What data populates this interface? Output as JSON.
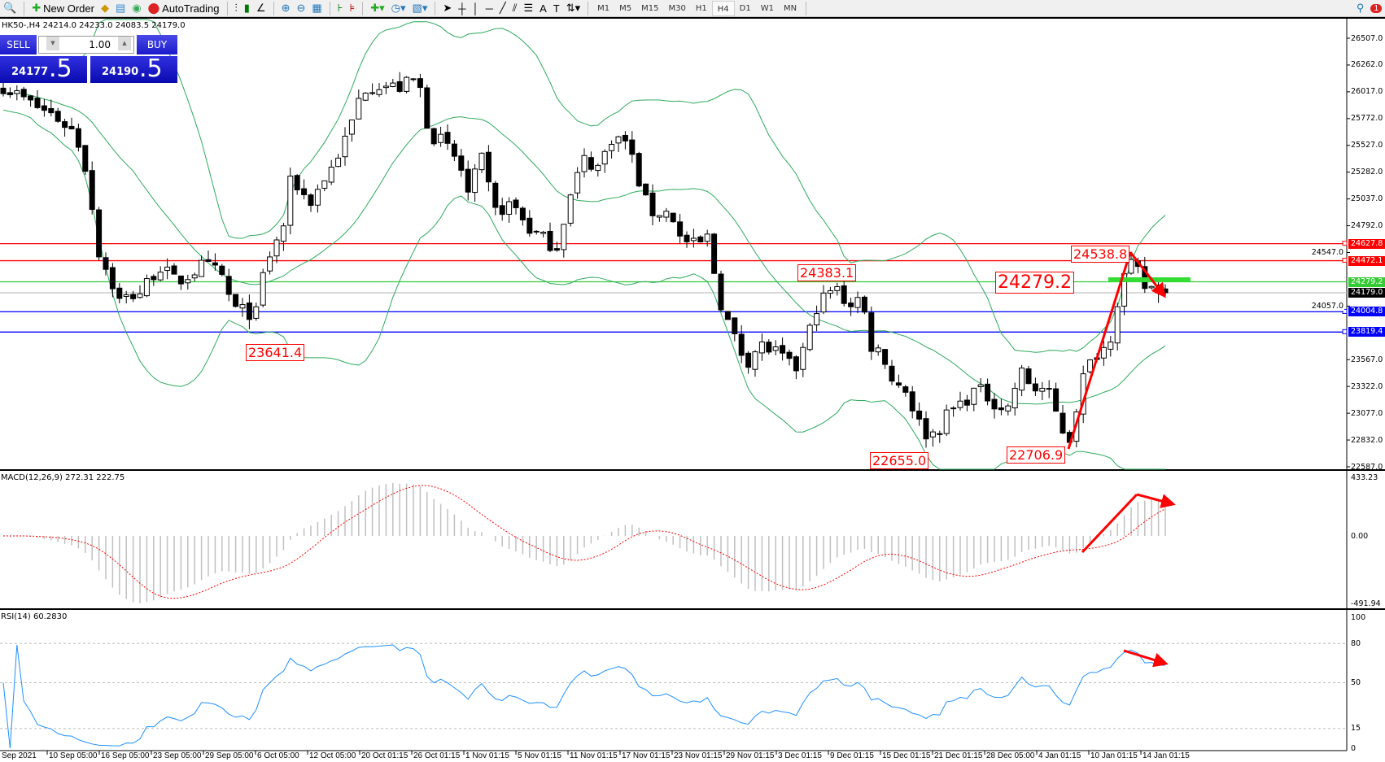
{
  "toolbar": {
    "new_order": "New Order",
    "auto_trading": "AutoTrading",
    "timeframes": [
      "M1",
      "M5",
      "M15",
      "M30",
      "H1",
      "H4",
      "D1",
      "W1",
      "MN"
    ],
    "active_timeframe": "H4",
    "notifications_count": "1"
  },
  "chart": {
    "header": "HK50-,H4  24214.0 24233.0 24083.5 24179.0",
    "symbol": "HK50-",
    "timeframe": "H4",
    "open": 24214.0,
    "high": 24233.0,
    "low": 24083.5,
    "close": 24179.0,
    "price_axis": [
      "26507.0",
      "26262.0",
      "26017.0",
      "25772.0",
      "25527.0",
      "25282.0",
      "25037.0",
      "24792.0",
      "24547.0",
      "24057.0",
      "23567.0",
      "23322.0",
      "23077.0",
      "22832.0",
      "22587.0"
    ],
    "levels": [
      {
        "value": "24627.8",
        "color": "#ff0000"
      },
      {
        "value": "24472.1",
        "color": "#ff0000"
      },
      {
        "value": "24279.2",
        "color": "#33cc33"
      },
      {
        "value": "24179.0",
        "color": "#000000"
      },
      {
        "value": "24004.8",
        "color": "#0000ff"
      },
      {
        "value": "23819.4",
        "color": "#0000ff"
      }
    ],
    "annotations": [
      "24383.1",
      "23641.4",
      "22655.0",
      "22706.9",
      "24538.8",
      "24279.2"
    ],
    "approx_price_path": [
      26089,
      25886,
      25806,
      25644,
      25240,
      24593,
      24108,
      24189,
      24431,
      24269,
      24431,
      24350,
      24027,
      23987,
      24431,
      24755,
      25240,
      24997,
      25320,
      25644,
      26048,
      26089,
      26048,
      26129,
      25967,
      25644,
      25563,
      25361,
      25078,
      25401,
      24916,
      24997,
      24755,
      24593,
      24916,
      25401,
      25320,
      25604,
      25563,
      25280,
      24916,
      24916,
      24674,
      24593,
      24714,
      24431,
      24108,
      23784,
      23542,
      23704,
      23623,
      23461,
      23784,
      24068,
      24229,
      24068,
      24148,
      23704,
      23623,
      23380,
      23299,
      22895,
      22895,
      23097,
      23178,
      23299,
      23218,
      23097,
      23461,
      23299,
      23299,
      22976,
      22814,
      23380,
      23623,
      23704,
      24108,
      24391,
      24431,
      24229,
      24229,
      24179
    ],
    "bands_color": "#2eaa5c",
    "bull_color": "#ffffff",
    "bear_color": "#000000"
  },
  "one_click": {
    "sell": "SELL",
    "buy": "BUY",
    "lot": "1.00",
    "bid_main": "24177",
    "bid_frac": ".5",
    "ask_main": "24190",
    "ask_frac": ".5"
  },
  "macd": {
    "header": "MACD(12,26,9) 272.31 222.75",
    "axis": [
      "433.23",
      "0.00",
      "-491.94"
    ],
    "max": 433.23,
    "min": -491.94
  },
  "rsi": {
    "header": "RSI(14) 60.2830",
    "axis": [
      "100",
      "80",
      "50",
      "15",
      "0"
    ],
    "levels": [
      80,
      50,
      15
    ],
    "line_color": "#1e90ff"
  },
  "time_axis": [
    "Sep 2021",
    "10 Sep 05:00",
    "16 Sep 05:00",
    "23 Sep 05:00",
    "29 Sep 05:00",
    "6 Oct 05:00",
    "12 Oct 05:00",
    "20 Oct 01:15",
    "26 Oct 01:15",
    "1 Nov 01:15",
    "5 Nov 01:15",
    "11 Nov 01:15",
    "17 Nov 01:15",
    "23 Nov 01:15",
    "29 Nov 01:15",
    "3 Dec 01:15",
    "9 Dec 01:15",
    "15 Dec 01:15",
    "21 Dec 01:15",
    "28 Dec 05:00",
    "4 Jan 01:15",
    "10 Jan 01:15",
    "14 Jan 01:15"
  ]
}
